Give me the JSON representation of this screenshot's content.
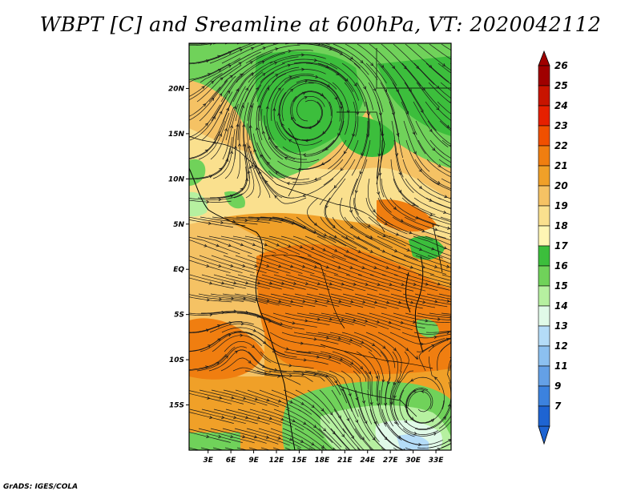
{
  "title": "WBPT [C] and Sreamline at 600hPa, VT: 2020042112",
  "footer": "GrADS: IGES/COLA",
  "map": {
    "lat_labels": [
      {
        "text": "20N",
        "lat": 20
      },
      {
        "text": "15N",
        "lat": 15
      },
      {
        "text": "10N",
        "lat": 10
      },
      {
        "text": "5N",
        "lat": 5
      },
      {
        "text": "EQ",
        "lat": 0
      },
      {
        "text": "5S",
        "lat": -5
      },
      {
        "text": "10S",
        "lat": -10
      },
      {
        "text": "15S",
        "lat": -15
      }
    ],
    "lon_labels": [
      {
        "text": "3E",
        "lon": 3
      },
      {
        "text": "6E",
        "lon": 6
      },
      {
        "text": "9E",
        "lon": 9
      },
      {
        "text": "12E",
        "lon": 12
      },
      {
        "text": "15E",
        "lon": 15
      },
      {
        "text": "18E",
        "lon": 18
      },
      {
        "text": "21E",
        "lon": 21
      },
      {
        "text": "24E",
        "lon": 24
      },
      {
        "text": "27E",
        "lon": 27
      },
      {
        "text": "30E",
        "lon": 30
      },
      {
        "text": "33E",
        "lon": 33
      }
    ],
    "lon_range": [
      0.5,
      35
    ],
    "lat_range": [
      -20,
      25
    ]
  },
  "colorbar": {
    "levels": [
      {
        "label": "26",
        "color": "#a00000"
      },
      {
        "label": "25",
        "color": "#c81400"
      },
      {
        "label": "24",
        "color": "#e62000"
      },
      {
        "label": "23",
        "color": "#f05000"
      },
      {
        "label": "22",
        "color": "#f07e10"
      },
      {
        "label": "21",
        "color": "#f0a028"
      },
      {
        "label": "20",
        "color": "#f5c264"
      },
      {
        "label": "19",
        "color": "#fae08e"
      },
      {
        "label": "18",
        "color": "#fff6b4"
      },
      {
        "label": "17",
        "color": "#3cbe3c"
      },
      {
        "label": "16",
        "color": "#70d25a"
      },
      {
        "label": "15",
        "color": "#b6f0a0"
      },
      {
        "label": "14",
        "color": "#e0fae8"
      },
      {
        "label": "13",
        "color": "#b4dcf8"
      },
      {
        "label": "12",
        "color": "#8cc0f0"
      },
      {
        "label": "11",
        "color": "#64a0e6"
      },
      {
        "label": "9",
        "color": "#3c82de"
      },
      {
        "label": "7",
        "color": "#1e64d2"
      }
    ],
    "top_arrow_color": "#a00000",
    "bottom_arrow_color": "#1e64d2"
  }
}
